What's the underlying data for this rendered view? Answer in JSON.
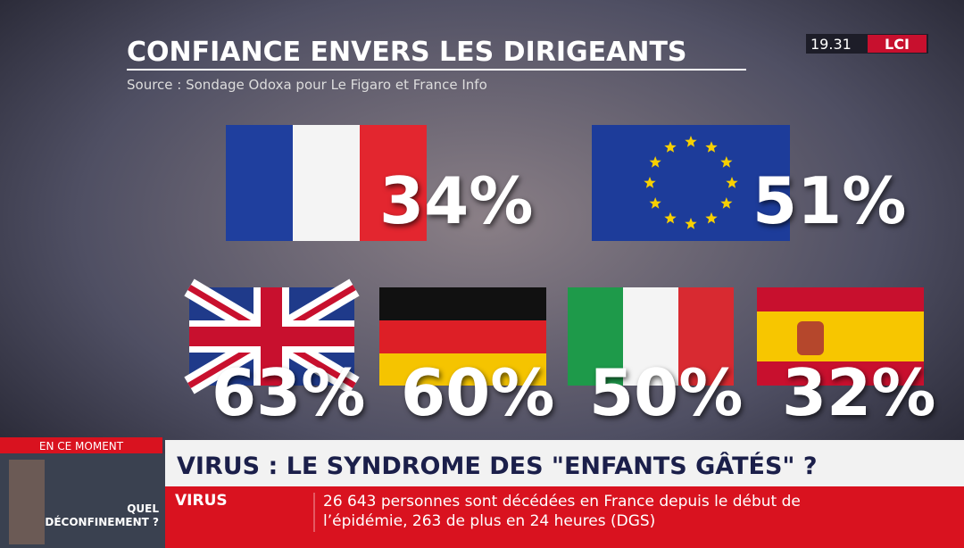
{
  "header": {
    "title": "CONFIANCE ENVERS LES DIRIGEANTS",
    "source": "Source : Sondage Odoxa pour Le Figaro et France Info"
  },
  "clock": "19.31",
  "channel": "LCI",
  "results": [
    "34%",
    "51%",
    "63%",
    "60%",
    "50%",
    "32%"
  ],
  "inset": {
    "label": "EN CE MOMENT",
    "caption": [
      "QUEL",
      "DÉCONFINEMENT ?"
    ]
  },
  "ticker": {
    "headline": "VIRUS : LE SYNDROME DES \"ENFANTS GÂTÉS\" ?",
    "tag": "VIRUS",
    "text": [
      "26 643 personnes sont décédées en France depuis le début de",
      "l’épidémie, 263 de plus en 24 heures (DGS)"
    ]
  }
}
